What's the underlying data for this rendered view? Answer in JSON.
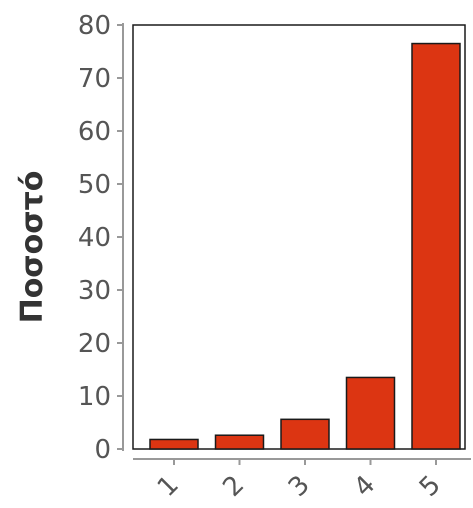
{
  "chart_data": {
    "type": "bar",
    "title": "",
    "xlabel": "",
    "ylabel": "Ποσοστό",
    "categories": [
      "1",
      "2",
      "3",
      "4",
      "5"
    ],
    "values": [
      1.8,
      2.6,
      5.6,
      13.5,
      76.5
    ],
    "ylim": [
      0,
      80
    ],
    "yticks": [
      0,
      10,
      20,
      30,
      40,
      50,
      60,
      70,
      80
    ],
    "grid": false,
    "colors": {
      "bar": "#dc3512",
      "bar_edge": "#1a1a1a",
      "axis": "#999999",
      "frame": "#1a1a1a"
    }
  }
}
